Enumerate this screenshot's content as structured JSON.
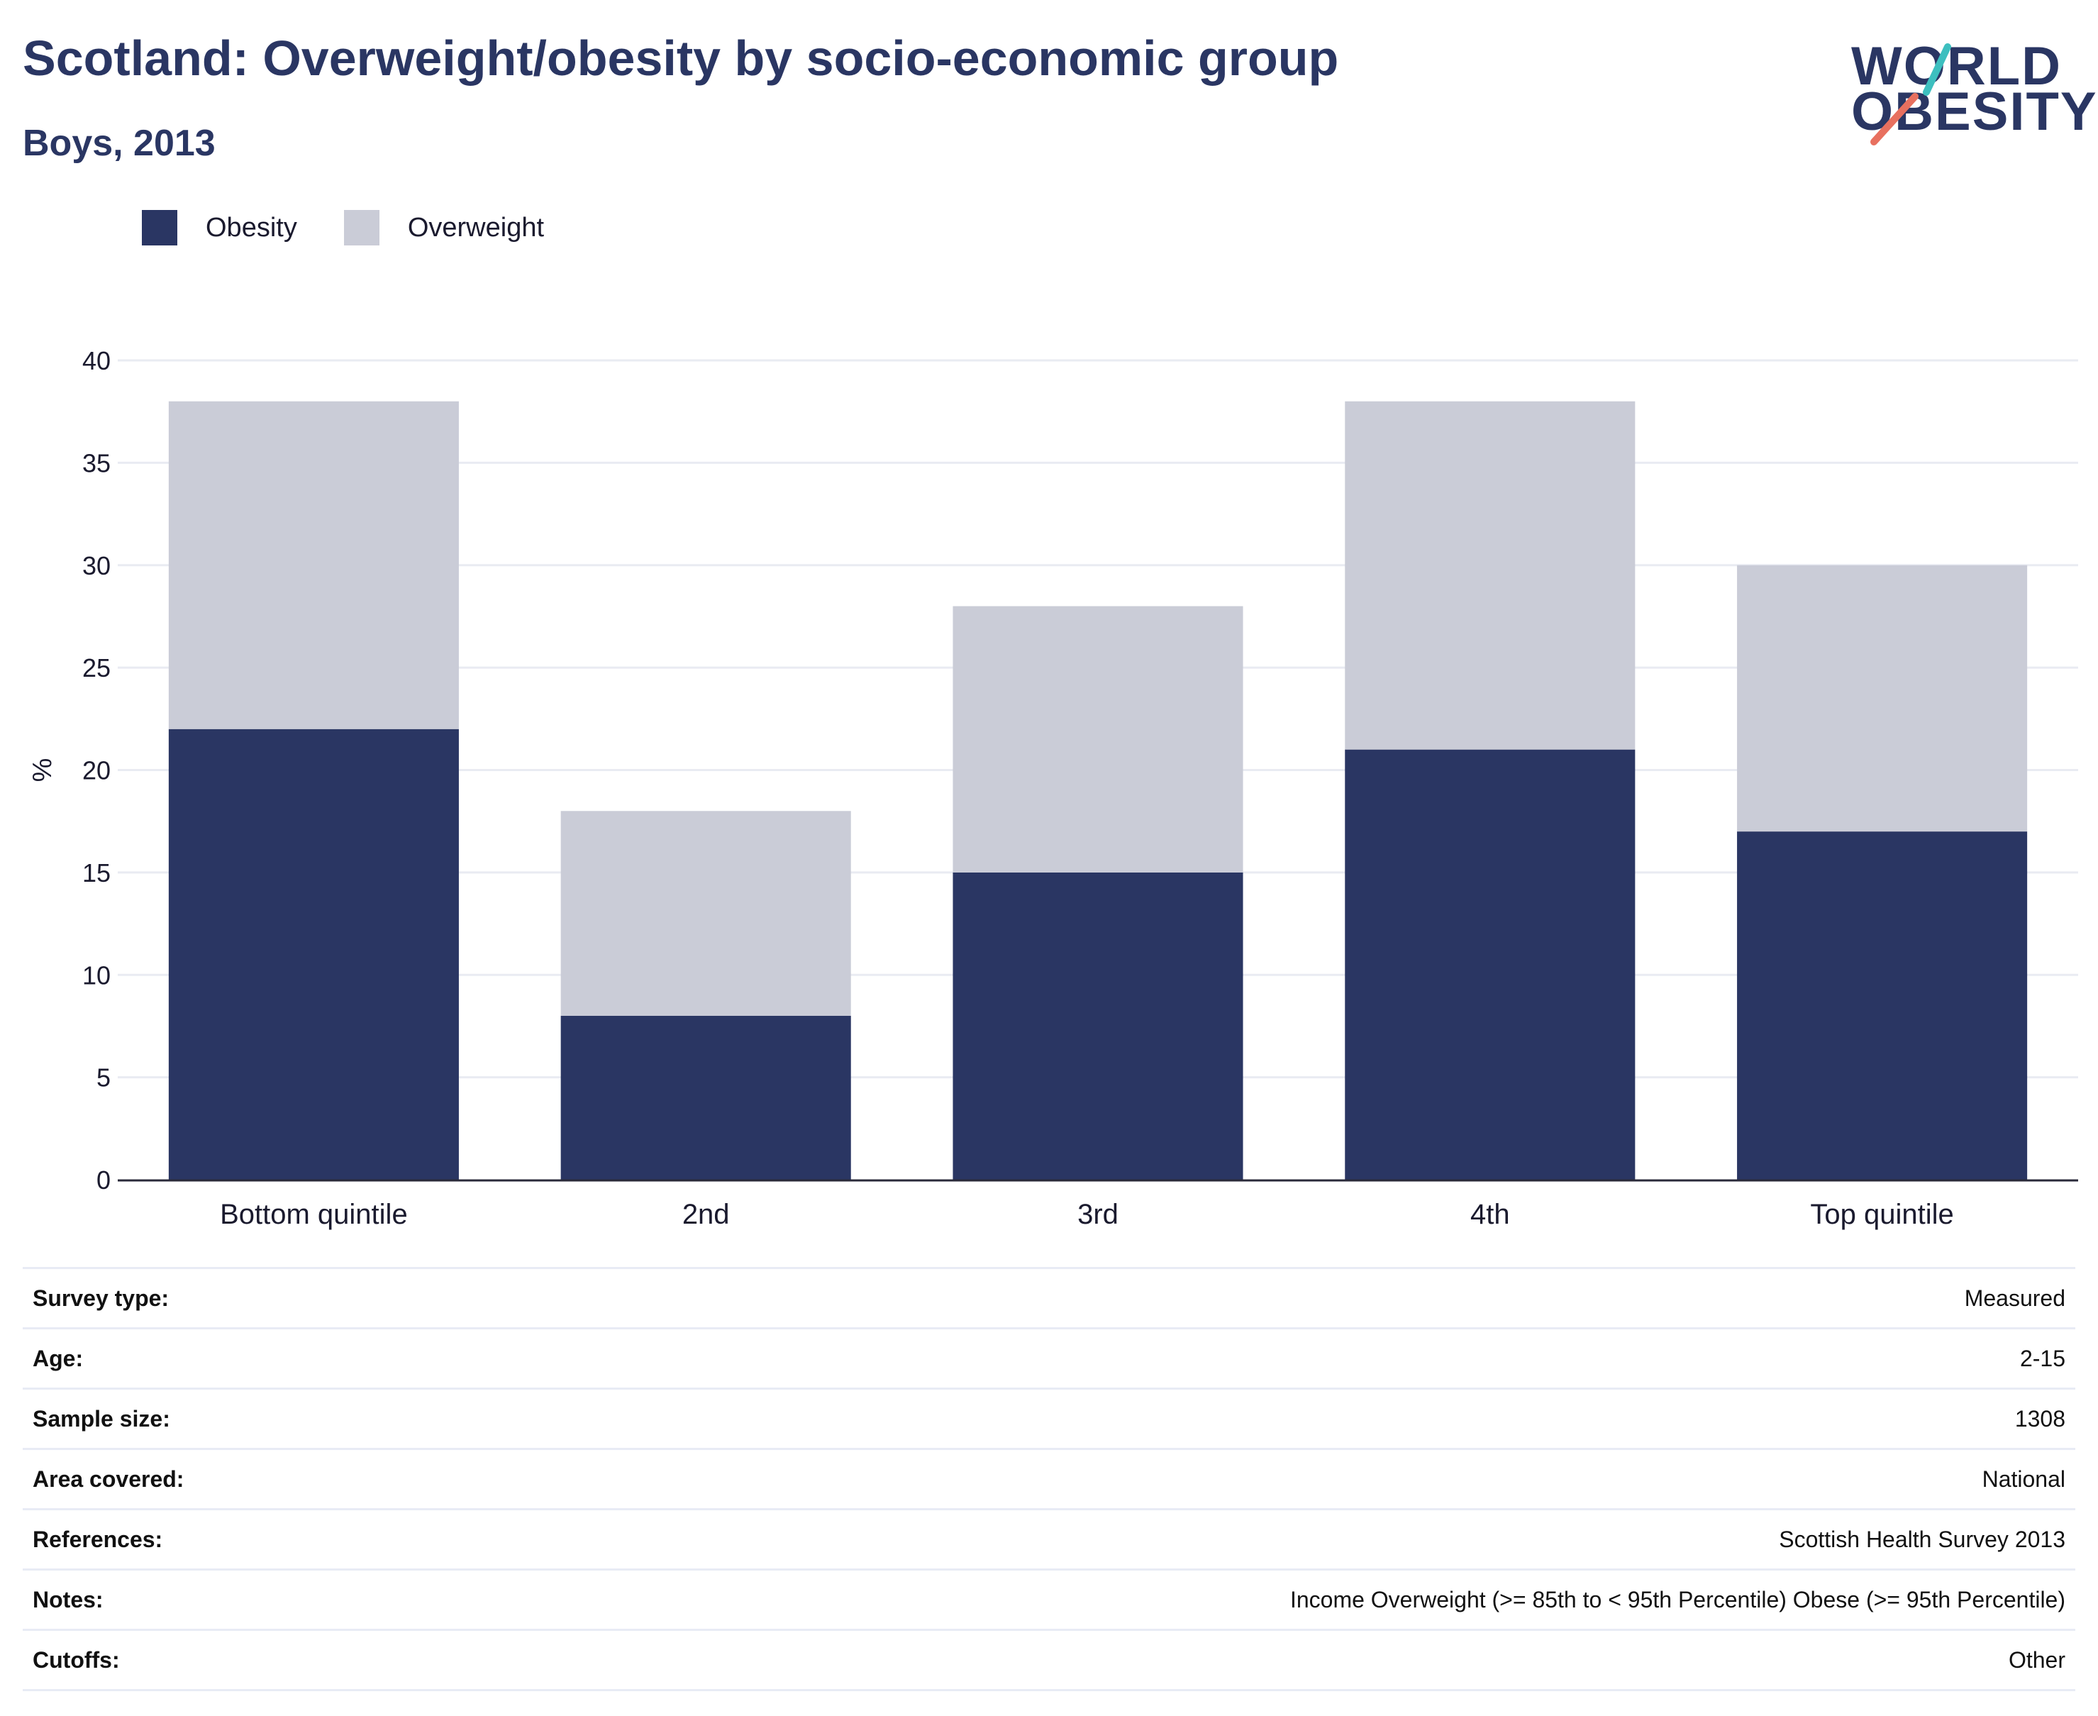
{
  "title": "Scotland: Overweight/obesity by socio-economic group",
  "subtitle": "Boys, 2013",
  "logo": {
    "line1": "WORLD",
    "line2": "OBESITY",
    "text_color": "#2a3663",
    "accent_teal": "#3dbfbf",
    "accent_coral": "#e8705f"
  },
  "colors": {
    "obesity": "#2a3663",
    "overweight": "#caccd7",
    "grid": "#e9ebf2",
    "axis": "#2a2a3a"
  },
  "legend": [
    {
      "label": "Obesity",
      "color": "#2a3663"
    },
    {
      "label": "Overweight",
      "color": "#caccd7"
    }
  ],
  "chart_data": {
    "type": "bar",
    "stacked": true,
    "categories": [
      "Bottom quintile",
      "2nd",
      "3rd",
      "4th",
      "Top quintile"
    ],
    "series": [
      {
        "name": "Obesity",
        "values": [
          22,
          8,
          15,
          21,
          17
        ]
      },
      {
        "name": "Overweight",
        "values": [
          16,
          10,
          13,
          17,
          13
        ]
      }
    ],
    "ylabel": "%",
    "xlabel": "",
    "ylim": [
      0,
      40
    ],
    "yticks": [
      0,
      5,
      10,
      15,
      20,
      25,
      30,
      35,
      40
    ],
    "grid": true,
    "legend_position": "top-left"
  },
  "meta": [
    {
      "label": "Survey type:",
      "value": "Measured"
    },
    {
      "label": "Age:",
      "value": "2-15"
    },
    {
      "label": "Sample size:",
      "value": "1308"
    },
    {
      "label": "Area covered:",
      "value": "National"
    },
    {
      "label": "References:",
      "value": "Scottish Health Survey 2013"
    },
    {
      "label": "Notes:",
      "value": "Income Overweight (>= 85th to < 95th Percentile) Obese (>= 95th Percentile)"
    },
    {
      "label": "Cutoffs:",
      "value": "Other"
    }
  ]
}
